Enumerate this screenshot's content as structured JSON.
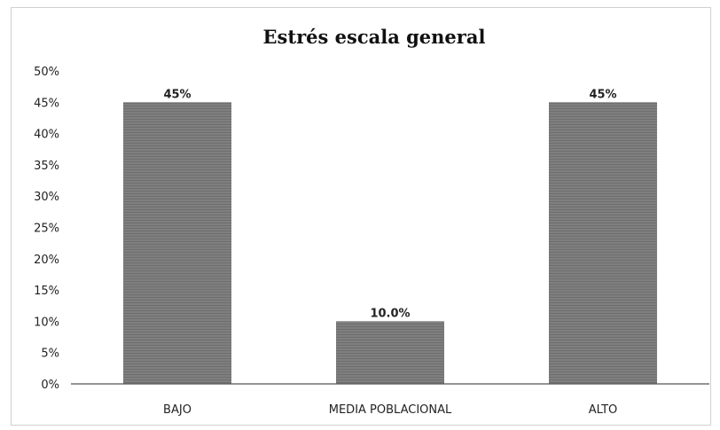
{
  "chart_data": {
    "type": "bar",
    "title": "Estrés escala general",
    "xlabel": "",
    "ylabel": "",
    "categories": [
      "BAJO",
      "MEDIA POBLACIONAL",
      "ALTO"
    ],
    "values": [
      45,
      10,
      45
    ],
    "value_labels": [
      "45%",
      "10.0%",
      "45%"
    ],
    "ylim": [
      0,
      50
    ],
    "yticks": [
      "0%",
      "5%",
      "10%",
      "15%",
      "20%",
      "25%",
      "30%",
      "35%",
      "40%",
      "45%",
      "50%"
    ],
    "grid": false,
    "legend": "none",
    "bar_color": "#7f7f7f"
  }
}
